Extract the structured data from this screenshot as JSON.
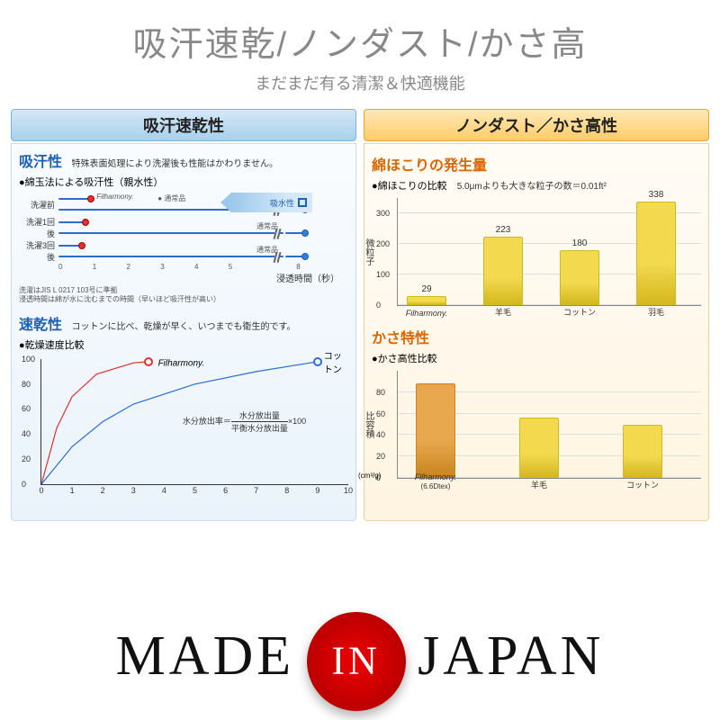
{
  "header": {
    "main": "吸汗速乾/ノンダスト/かさ高",
    "sub": "まだまだ有る清潔＆快適機能"
  },
  "left": {
    "panel_title": "吸汗速乾性",
    "s1_title": "吸汗性",
    "s1_note": "特殊表面処理により洗濯後も性能はかわりません。",
    "s1_bullet": "●綿玉法による吸汗性（親水性）",
    "rows": [
      {
        "label": "洗濯前",
        "fil": 1.1,
        "std": 8.2,
        "std_label": "通常品",
        "fil_tag": "Filharmony."
      },
      {
        "label": "洗濯1回後",
        "fil": 0.9,
        "std": 8.4,
        "std_label": "通常品"
      },
      {
        "label": "洗濯3回後",
        "fil": 0.8,
        "std": 8.5,
        "std_label": "通常品"
      }
    ],
    "x_ticks": [
      "0",
      "1",
      "2",
      "3",
      "4",
      "5",
      "",
      "8"
    ],
    "x_axis_label": "浸透時間（秒）",
    "arrow": "吸水性",
    "footnote": "洗濯はJIS L 0217 103号に準拠\n浸透時間は綿が水に沈むまでの時間（早いほど吸汗性が高い）",
    "s2_title": "速乾性",
    "s2_note": "コットンに比べ、乾燥が早く、いつまでも衛生的です。",
    "s2_bullet": "●乾燥速度比較",
    "dry": {
      "y_ticks": [
        0,
        20,
        40,
        60,
        80,
        100
      ],
      "x_ticks": [
        0,
        1,
        2,
        3,
        4,
        5,
        6,
        7,
        8,
        9,
        10
      ],
      "xmax": 10,
      "ymax": 100,
      "lines": {
        "fil": {
          "color": "#e03030",
          "pts": [
            [
              0,
              0
            ],
            [
              0.5,
              45
            ],
            [
              1,
              70
            ],
            [
              1.8,
              88
            ],
            [
              3,
              97
            ],
            [
              3.5,
              98
            ]
          ],
          "cap": [
            3.5,
            98
          ],
          "label": "Filharmony.",
          "label_pos": [
            3.8,
            96
          ]
        },
        "cotton": {
          "color": "#2a6dd0",
          "pts": [
            [
              0,
              0
            ],
            [
              1,
              30
            ],
            [
              2,
              50
            ],
            [
              3,
              64
            ],
            [
              5,
              80
            ],
            [
              7,
              90
            ],
            [
              9,
              98
            ]
          ],
          "cap": [
            9,
            98
          ],
          "label": "コットン",
          "label_pos": [
            9.2,
            98
          ]
        }
      },
      "formula_lhs": "水分放出率＝",
      "formula_num": "水分放出量",
      "formula_den": "平衡水分放出量",
      "formula_rhs": "×100",
      "formula_pos": [
        4.6,
        40
      ]
    }
  },
  "right": {
    "panel_title": "ノンダスト／かさ高性",
    "s1_title": "綿ほこりの発生量",
    "s1_bullet": "●綿ほこりの比較",
    "s1_cond": "5.0μmよりも大きな粒子の数＝0.01ft²",
    "bar1": {
      "ymax": 350,
      "y_ticks": [
        0,
        100,
        200,
        300
      ],
      "ylabel": "微粒子",
      "color": "#f2d94e",
      "border": "#d4b820",
      "bars": [
        {
          "label": "Filharmony.",
          "val": 29,
          "x": 10
        },
        {
          "label": "羊毛",
          "val": 223,
          "x": 95
        },
        {
          "label": "コットン",
          "val": 180,
          "x": 180
        },
        {
          "label": "羽毛",
          "val": 338,
          "x": 265
        }
      ]
    },
    "s2_title": "かさ特性",
    "s2_bullet": "●かさ高性比較",
    "bar2": {
      "ymax": 100,
      "y_ticks": [
        0,
        20,
        40,
        60,
        80
      ],
      "ylabel": "比容積",
      "yunit": "(cm³/g)",
      "bars": [
        {
          "label": "Filharmony.",
          "sub": "(6.6Dtex)",
          "val": 88,
          "x": 20,
          "color": "#e8a84e",
          "border": "#c98420"
        },
        {
          "label": "羊毛",
          "val": 56,
          "x": 135,
          "color": "#f2d94e",
          "border": "#d4b820"
        },
        {
          "label": "コットン",
          "val": 50,
          "x": 250,
          "color": "#f2d94e",
          "border": "#d4b820"
        }
      ]
    }
  },
  "footer": {
    "made": "MADE",
    "in": "IN",
    "japan": "JAPAN"
  }
}
